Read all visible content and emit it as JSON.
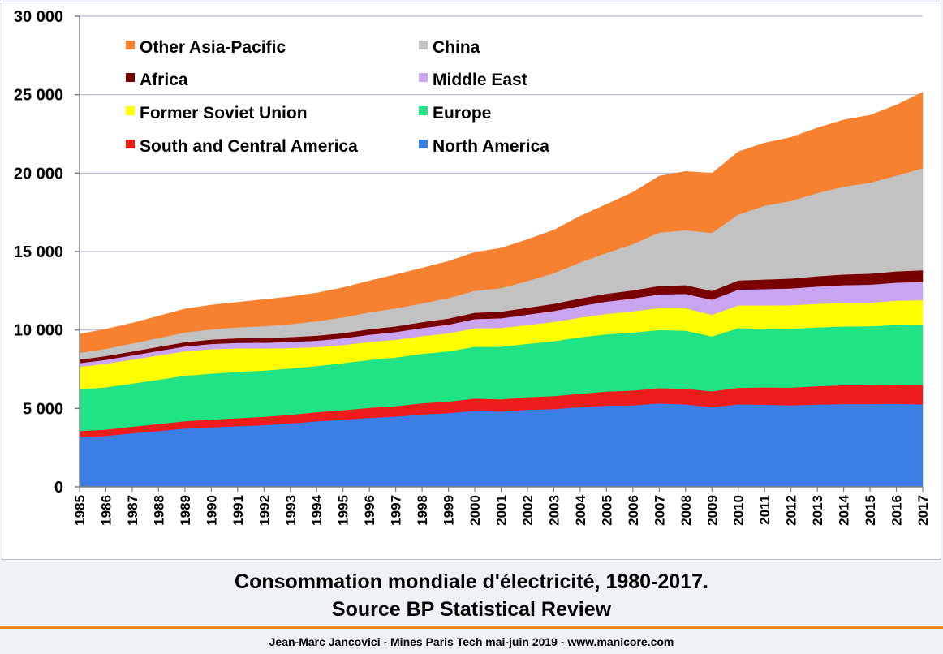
{
  "caption": {
    "line1": "Consommation mondiale d'électricité, 1980-2017.",
    "line2": "Source BP Statistical Review"
  },
  "footer": "Jean-Marc Jancovici - Mines Paris Tech mai-juin 2019 - www.manicore.com",
  "chart_data": {
    "type": "area",
    "stacked": true,
    "title": "",
    "xlabel": "",
    "ylabel": "",
    "x": [
      1985,
      1986,
      1987,
      1988,
      1989,
      1990,
      1991,
      1992,
      1993,
      1994,
      1995,
      1996,
      1997,
      1998,
      1999,
      2000,
      2001,
      2002,
      2003,
      2004,
      2005,
      2006,
      2007,
      2008,
      2009,
      2010,
      2011,
      2012,
      2013,
      2014,
      2015,
      2016,
      2017
    ],
    "ylim": [
      0,
      30000
    ],
    "yticks": [
      0,
      5000,
      10000,
      15000,
      20000,
      25000,
      30000
    ],
    "ytick_labels": [
      "0",
      "5 000",
      "10 000",
      "15 000",
      "20 000",
      "25 000",
      "30 000"
    ],
    "grid": "horizontal",
    "legend_position": "top-left, two columns",
    "series": [
      {
        "name": "North America",
        "color": "#3a7ee6",
        "values": [
          3180,
          3250,
          3420,
          3560,
          3720,
          3800,
          3870,
          3940,
          4050,
          4180,
          4280,
          4400,
          4480,
          4620,
          4700,
          4850,
          4800,
          4920,
          4960,
          5080,
          5180,
          5200,
          5320,
          5260,
          5080,
          5260,
          5240,
          5200,
          5250,
          5280,
          5280,
          5300,
          5260
        ]
      },
      {
        "name": "South and Central America",
        "color": "#ef1c1c",
        "values": [
          380,
          400,
          420,
          450,
          470,
          490,
          510,
          530,
          550,
          580,
          610,
          640,
          670,
          710,
          740,
          780,
          780,
          800,
          830,
          860,
          900,
          940,
          980,
          1000,
          1010,
          1060,
          1100,
          1130,
          1170,
          1200,
          1210,
          1220,
          1240
        ]
      },
      {
        "name": "Europe",
        "color": "#1fe384",
        "values": [
          2650,
          2700,
          2750,
          2820,
          2900,
          2930,
          2950,
          2950,
          2950,
          2950,
          3000,
          3050,
          3100,
          3150,
          3200,
          3300,
          3350,
          3400,
          3500,
          3600,
          3650,
          3700,
          3700,
          3700,
          3500,
          3800,
          3750,
          3750,
          3750,
          3750,
          3750,
          3800,
          3850
        ]
      },
      {
        "name": "Former Soviet Union",
        "color": "#ffff00",
        "values": [
          1450,
          1500,
          1520,
          1550,
          1550,
          1560,
          1500,
          1400,
          1300,
          1200,
          1150,
          1150,
          1130,
          1130,
          1150,
          1180,
          1200,
          1200,
          1220,
          1250,
          1300,
          1350,
          1400,
          1420,
          1380,
          1450,
          1480,
          1500,
          1500,
          1500,
          1500,
          1550,
          1550
        ]
      },
      {
        "name": "Middle East",
        "color": "#c9a4f0",
        "values": [
          230,
          250,
          270,
          290,
          310,
          330,
          350,
          370,
          390,
          410,
          430,
          460,
          490,
          520,
          550,
          590,
          620,
          660,
          700,
          740,
          780,
          820,
          870,
          920,
          960,
          1000,
          1040,
          1070,
          1100,
          1130,
          1150,
          1150,
          1170
        ]
      },
      {
        "name": "Africa",
        "color": "#7a0000",
        "values": [
          230,
          240,
          250,
          260,
          270,
          280,
          290,
          300,
          310,
          320,
          330,
          350,
          360,
          370,
          390,
          400,
          420,
          440,
          460,
          480,
          500,
          520,
          540,
          560,
          560,
          590,
          610,
          630,
          660,
          680,
          700,
          720,
          740
        ]
      },
      {
        "name": "China",
        "color": "#c2c2c2",
        "values": [
          420,
          460,
          510,
          560,
          620,
          650,
          700,
          750,
          820,
          920,
          1000,
          1080,
          1150,
          1200,
          1300,
          1400,
          1500,
          1700,
          1950,
          2300,
          2600,
          2950,
          3400,
          3500,
          3700,
          4200,
          4700,
          4950,
          5300,
          5600,
          5800,
          6100,
          6500
        ]
      },
      {
        "name": "Other Asia-Pacific",
        "color": "#f7812e",
        "values": [
          1200,
          1250,
          1300,
          1400,
          1500,
          1550,
          1600,
          1700,
          1750,
          1800,
          1900,
          2000,
          2150,
          2250,
          2350,
          2450,
          2550,
          2650,
          2750,
          2950,
          3100,
          3300,
          3600,
          3750,
          3800,
          4000,
          4000,
          4050,
          4150,
          4250,
          4300,
          4500,
          4850
        ]
      }
    ],
    "legend_order": [
      "Other Asia-Pacific",
      "China",
      "Africa",
      "Middle East",
      "Former Soviet Union",
      "Europe",
      "South and Central America",
      "North America"
    ]
  }
}
